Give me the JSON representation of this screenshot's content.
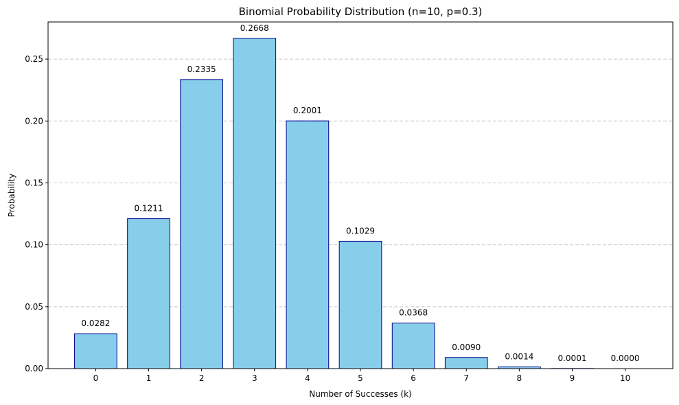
{
  "chart_data": {
    "type": "bar",
    "title": "Binomial Probability Distribution (n=10, p=0.3)",
    "xlabel": "Number of Successes (k)",
    "ylabel": "Probability",
    "categories": [
      "0",
      "1",
      "2",
      "3",
      "4",
      "5",
      "6",
      "7",
      "8",
      "9",
      "10"
    ],
    "values": [
      0.0282,
      0.1211,
      0.2335,
      0.2668,
      0.2001,
      0.1029,
      0.0368,
      0.009,
      0.0014,
      0.0001,
      0.0
    ],
    "data_labels": [
      "0.0282",
      "0.1211",
      "0.2335",
      "0.2668",
      "0.2001",
      "0.1029",
      "0.0368",
      "0.0090",
      "0.0014",
      "0.0001",
      "0.0000"
    ],
    "yticks": [
      "0.00",
      "0.05",
      "0.10",
      "0.15",
      "0.20",
      "0.25"
    ],
    "ytick_values": [
      0,
      0.05,
      0.1,
      0.15,
      0.2,
      0.25
    ],
    "ylim": [
      0,
      0.28
    ],
    "grid": "y-axis dashed",
    "bar_color": "#87CEEB",
    "bar_edge_color": "#00008B"
  }
}
